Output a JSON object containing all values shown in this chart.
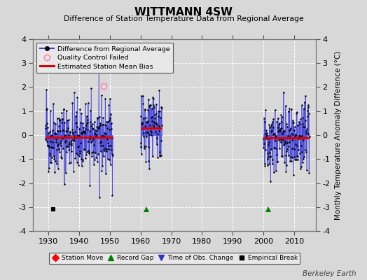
{
  "title": "WITTMANN 4SW",
  "subtitle": "Difference of Station Temperature Data from Regional Average",
  "ylabel": "Monthly Temperature Anomaly Difference (°C)",
  "xlim": [
    1925,
    2017
  ],
  "ylim": [
    -4,
    4
  ],
  "yticks": [
    -4,
    -3,
    -2,
    -1,
    0,
    1,
    2,
    3,
    4
  ],
  "xticks": [
    1930,
    1940,
    1950,
    1960,
    1970,
    1980,
    1990,
    2000,
    2010
  ],
  "background_color": "#d8d8d8",
  "plot_bg_color": "#d8d8d8",
  "grid_color": "#ffffff",
  "line_color": "#4444dd",
  "dot_color": "#000000",
  "bias_line_color": "#dd0000",
  "qc_color": "#ff88bb",
  "berkeley_earth_color": "#444444",
  "seg1_start_year": 1929,
  "seg1_end_year": 1950,
  "seg1_bias": -0.08,
  "seg2_start_year": 1960,
  "seg2_end_year": 1966,
  "seg2_bias": 0.28,
  "seg3_start_year": 2000,
  "seg3_end_year": 2014,
  "seg3_bias": -0.13,
  "record_gap_x1": 1962.0,
  "record_gap_x2": 2001.5,
  "record_gap_y": -3.1,
  "empirical_break_x": 1931.5,
  "empirical_break_y": -3.1,
  "qc_x": 1948.0,
  "qc_y": 2.05,
  "seed": 42
}
